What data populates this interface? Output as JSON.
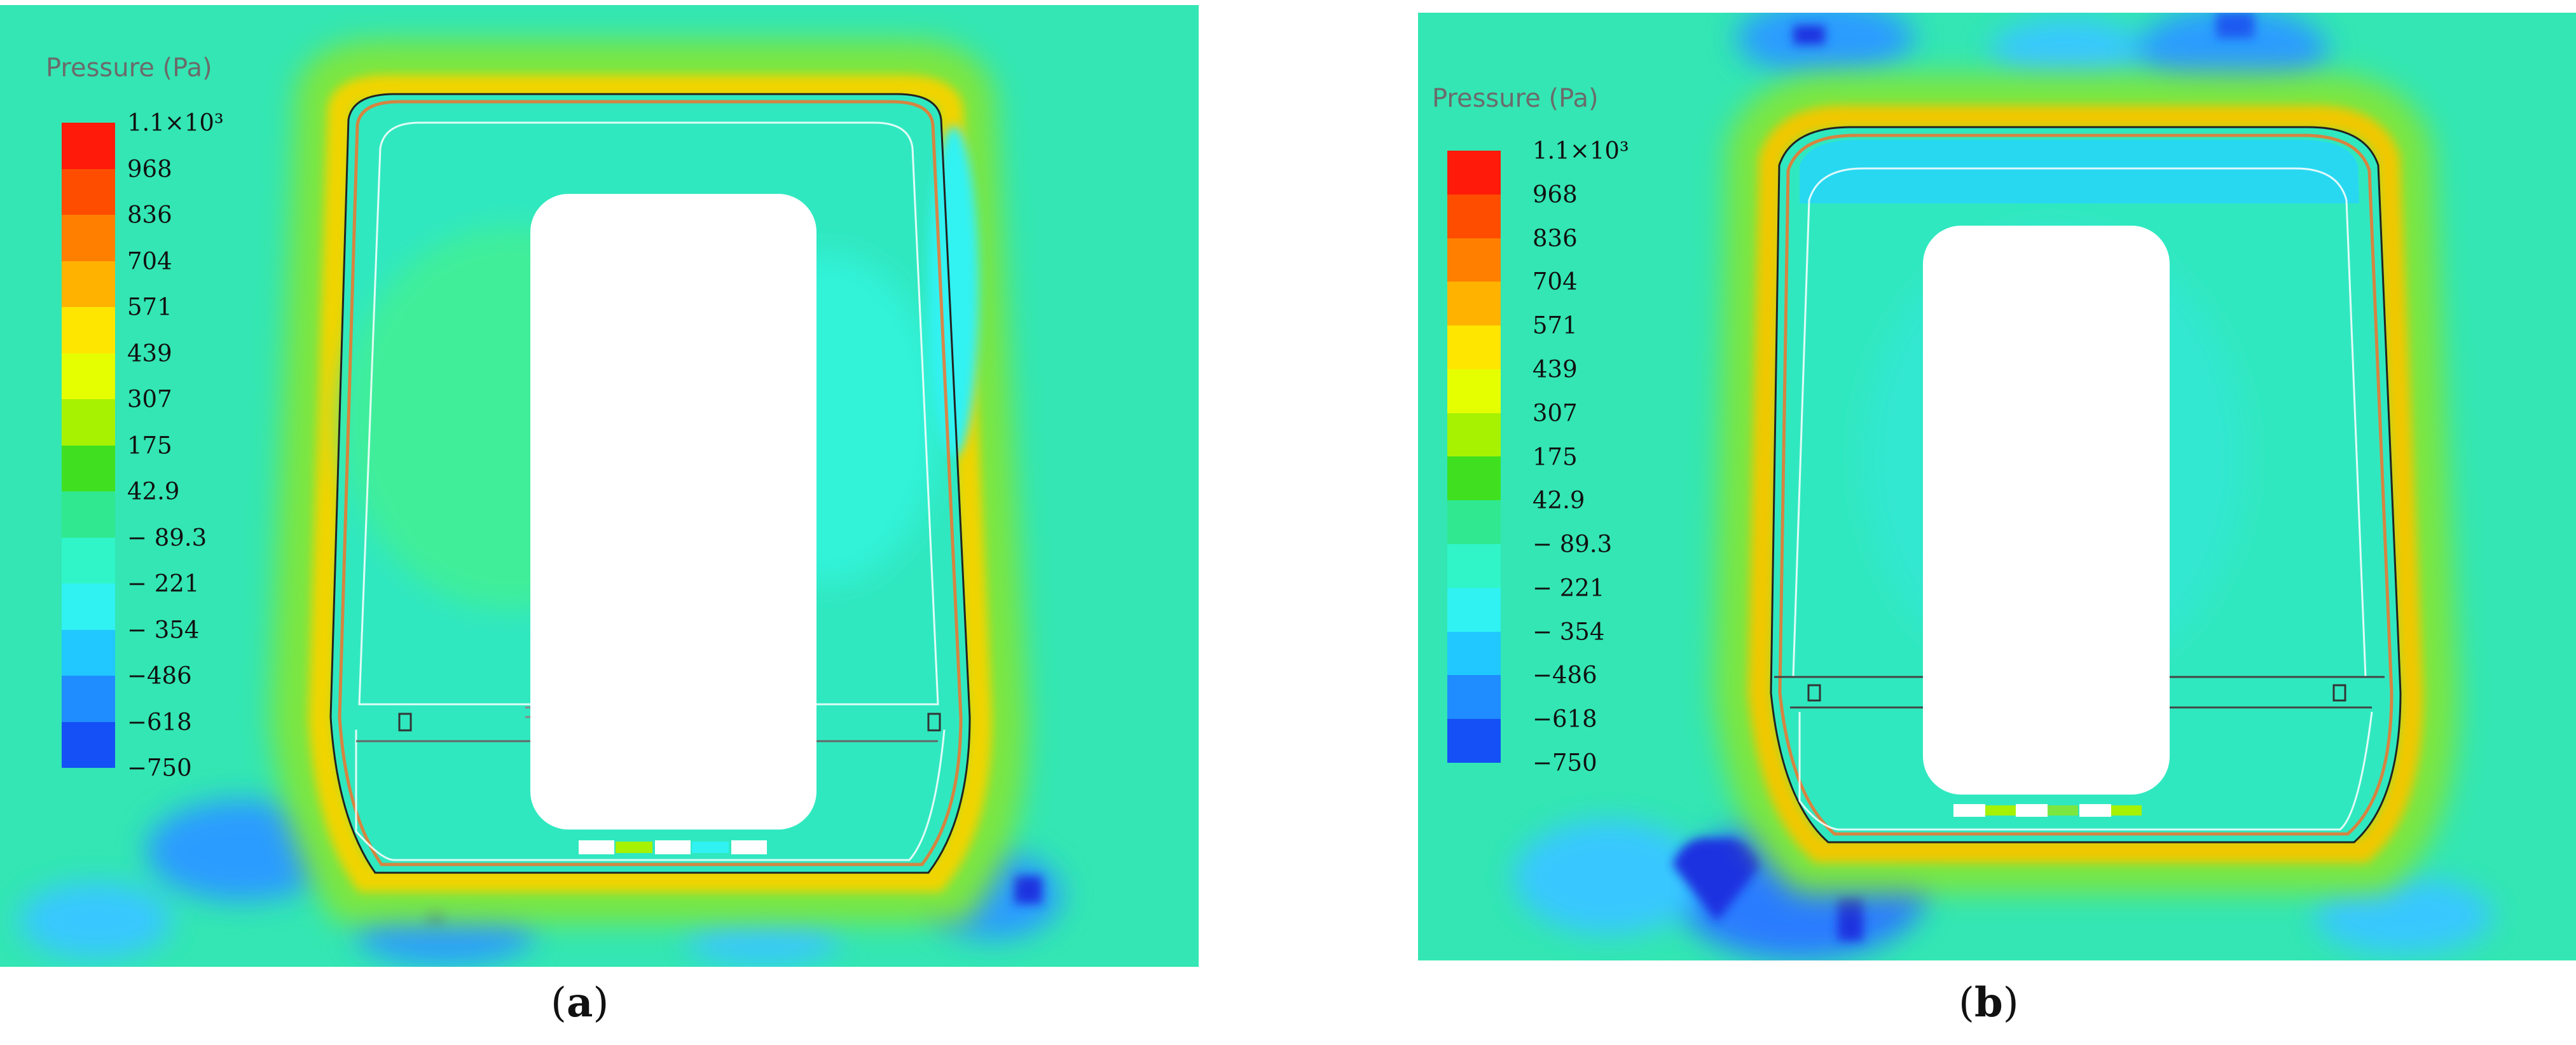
{
  "panels": [
    {
      "id": "a",
      "caption_letter": "a",
      "legend": {
        "title": "Pressure (Pa)",
        "ticks": [
          "1.1×10³",
          "968",
          "836",
          "704",
          "571",
          "439",
          "307",
          "175",
          "42.9",
          "− 89.3",
          "− 221",
          "− 354",
          "−486",
          "−618",
          "−750"
        ]
      }
    },
    {
      "id": "b",
      "caption_letter": "b",
      "legend": {
        "title": "Pressure (Pa)",
        "ticks": [
          "1.1×10³",
          "968",
          "836",
          "704",
          "571",
          "439",
          "307",
          "175",
          "42.9",
          "− 89.3",
          "− 221",
          "− 354",
          "−486",
          "−618",
          "−750"
        ]
      }
    }
  ],
  "colorbar_colors": [
    "#ff1a0a",
    "#ff4d00",
    "#ff8000",
    "#ffb300",
    "#ffe600",
    "#e6ff00",
    "#a6f200",
    "#40e020",
    "#30e890",
    "#30f5c8",
    "#30f2f2",
    "#20c8ff",
    "#1f8cff",
    "#1450f5"
  ],
  "field_colors": {
    "background": "#33e6b3",
    "near_wall_warm": "#f0c800",
    "near_wall_green": "#7ce640",
    "wall_hot": "#ff5a1a",
    "cabin_inner_cyan": "#28f0e6",
    "low_pressure_blue": "#2070ff",
    "deep_blue": "#1a30e0"
  }
}
